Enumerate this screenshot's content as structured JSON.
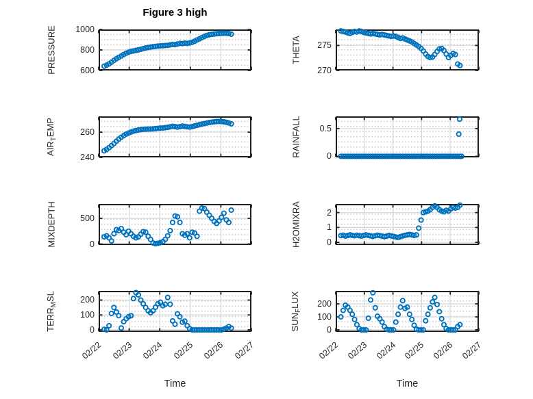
{
  "title": "Figure 3 high",
  "style": {
    "marker": "o",
    "marker_color": "#0072BD",
    "axis_color": "#1f1f1f",
    "grid_color": "#d8d8d8",
    "minor_grid_color": "#c6c6c6",
    "background": "#ffffff"
  },
  "xaxis": {
    "label": "Time",
    "xlim": [
      0,
      5
    ],
    "ticks": [
      "02/22",
      "02/23",
      "02/24",
      "02/25",
      "02/26",
      "02/27"
    ],
    "minor_grid": true
  },
  "chart_data": [
    {
      "id": "pressure",
      "type": "scatter",
      "row": 0,
      "col": 0,
      "ylabel_parts": [
        {
          "t": "PRESSURE"
        }
      ],
      "ylabel_text": "PRESSURE",
      "ylim": [
        600,
        1000
      ],
      "yticks": [
        600,
        800,
        1000
      ],
      "ytick_labels": [
        "600",
        "800",
        "1000"
      ],
      "x": [
        0.18,
        0.26,
        0.34,
        0.42,
        0.5,
        0.58,
        0.66,
        0.74,
        0.82,
        0.9,
        0.98,
        1.06,
        1.14,
        1.22,
        1.3,
        1.38,
        1.46,
        1.54,
        1.62,
        1.7,
        1.78,
        1.86,
        1.94,
        2.02,
        2.1,
        2.18,
        2.26,
        2.34,
        2.42,
        2.5,
        2.58,
        2.66,
        2.74,
        2.82,
        2.9,
        2.98,
        3.06,
        3.14,
        3.22,
        3.3,
        3.38,
        3.46,
        3.54,
        3.62,
        3.7,
        3.78,
        3.86,
        3.94,
        4.02,
        4.1,
        4.18,
        4.26,
        4.34
      ],
      "y": [
        642,
        652,
        665,
        681,
        698,
        714,
        728,
        742,
        756,
        768,
        778,
        786,
        791,
        796,
        801,
        807,
        813,
        819,
        824,
        828,
        832,
        835,
        838,
        840,
        841,
        843,
        845,
        849,
        854,
        852,
        858,
        864,
        862,
        866,
        864,
        868,
        875,
        885,
        897,
        909,
        921,
        932,
        941,
        948,
        952,
        955,
        958,
        960,
        962,
        963,
        962,
        960,
        954
      ]
    },
    {
      "id": "theta",
      "type": "scatter",
      "row": 0,
      "col": 1,
      "ylabel_parts": [
        {
          "t": "THETA"
        }
      ],
      "ylabel_text": "THETA",
      "ylim": [
        270,
        278.2
      ],
      "yticks": [
        270,
        275
      ],
      "ytick_labels": [
        "270",
        "275"
      ],
      "x": [
        0.18,
        0.26,
        0.34,
        0.42,
        0.5,
        0.58,
        0.66,
        0.74,
        0.82,
        0.9,
        0.98,
        1.06,
        1.14,
        1.22,
        1.3,
        1.38,
        1.46,
        1.54,
        1.62,
        1.7,
        1.78,
        1.86,
        1.94,
        2.02,
        2.1,
        2.18,
        2.26,
        2.34,
        2.42,
        2.5,
        2.58,
        2.66,
        2.74,
        2.82,
        2.9,
        2.98,
        3.06,
        3.14,
        3.22,
        3.3,
        3.38,
        3.46,
        3.54,
        3.62,
        3.7,
        3.78,
        3.86,
        3.94,
        4.02,
        4.1,
        4.18,
        4.26,
        4.34
      ],
      "y": [
        277.9,
        277.8,
        277.7,
        277.5,
        277.4,
        277.6,
        277.8,
        277.7,
        277.9,
        277.8,
        277.6,
        277.5,
        277.4,
        277.3,
        277.4,
        277.3,
        277.2,
        277.1,
        277.2,
        277.1,
        277.0,
        276.9,
        276.8,
        276.9,
        276.8,
        276.6,
        276.4,
        276.5,
        276.3,
        276.1,
        275.9,
        275.7,
        275.4,
        275.1,
        274.8,
        274.4,
        273.9,
        273.3,
        272.8,
        272.6,
        272.7,
        273.2,
        273.8,
        274.3,
        274.4,
        274.0,
        273.3,
        272.6,
        273.0,
        273.4,
        273.2,
        271.3,
        271.0
      ]
    },
    {
      "id": "airtemp",
      "type": "scatter",
      "row": 1,
      "col": 0,
      "ylabel_parts": [
        {
          "t": "AIR"
        },
        {
          "t": "T",
          "sub": true
        },
        {
          "t": "EMP"
        }
      ],
      "ylabel_text": "AIR_TEMP",
      "ylim": [
        240,
        272.5
      ],
      "yticks": [
        240,
        260
      ],
      "ytick_labels": [
        "240",
        "260"
      ],
      "x": [
        0.18,
        0.26,
        0.34,
        0.42,
        0.5,
        0.58,
        0.66,
        0.74,
        0.82,
        0.9,
        0.98,
        1.06,
        1.14,
        1.22,
        1.3,
        1.38,
        1.46,
        1.54,
        1.62,
        1.7,
        1.78,
        1.86,
        1.94,
        2.02,
        2.1,
        2.18,
        2.26,
        2.34,
        2.42,
        2.5,
        2.58,
        2.66,
        2.74,
        2.82,
        2.9,
        2.98,
        3.06,
        3.14,
        3.22,
        3.3,
        3.38,
        3.46,
        3.54,
        3.62,
        3.7,
        3.78,
        3.86,
        3.94,
        4.02,
        4.1,
        4.18,
        4.26,
        4.34
      ],
      "y": [
        245.2,
        246.3,
        247.7,
        249.3,
        251.0,
        252.8,
        254.5,
        256.0,
        257.3,
        258.4,
        259.3,
        260.1,
        260.8,
        261.3,
        261.7,
        262.0,
        262.2,
        262.3,
        262.4,
        262.5,
        262.6,
        262.8,
        263.0,
        263.2,
        263.3,
        263.5,
        263.8,
        264.2,
        264.6,
        264.3,
        264.0,
        264.4,
        264.8,
        264.5,
        264.2,
        264.0,
        264.4,
        264.9,
        265.4,
        265.9,
        266.4,
        266.8,
        267.2,
        267.6,
        267.9,
        268.2,
        268.4,
        268.5,
        268.4,
        268.2,
        267.8,
        267.3,
        266.6
      ]
    },
    {
      "id": "rainfall",
      "type": "scatter",
      "row": 1,
      "col": 1,
      "ylabel_parts": [
        {
          "t": "RAINFALL"
        }
      ],
      "ylabel_text": "RAINFALL",
      "ylim": [
        -0.02,
        0.72
      ],
      "yticks": [
        0,
        0.5
      ],
      "ytick_labels": [
        "0",
        "0.5"
      ],
      "x": [
        0.18,
        0.26,
        0.34,
        0.42,
        0.5,
        0.58,
        0.66,
        0.74,
        0.82,
        0.9,
        0.98,
        1.06,
        1.14,
        1.22,
        1.3,
        1.38,
        1.46,
        1.54,
        1.62,
        1.7,
        1.78,
        1.86,
        1.94,
        2.02,
        2.1,
        2.18,
        2.26,
        2.34,
        2.42,
        2.5,
        2.58,
        2.66,
        2.74,
        2.82,
        2.9,
        2.98,
        3.06,
        3.14,
        3.22,
        3.3,
        3.38,
        3.46,
        3.54,
        3.62,
        3.7,
        3.78,
        3.86,
        3.94,
        4.02,
        4.1,
        4.18,
        4.26,
        4.34,
        4.3,
        4.33,
        4.4
      ],
      "y": [
        0,
        0,
        0,
        0,
        0,
        0,
        0,
        0,
        0,
        0,
        0,
        0,
        0,
        0,
        0,
        0,
        0,
        0,
        0,
        0,
        0,
        0,
        0,
        0,
        0,
        0,
        0,
        0,
        0,
        0,
        0,
        0,
        0,
        0,
        0,
        0,
        0,
        0,
        0,
        0,
        0,
        0,
        0,
        0,
        0,
        0,
        0,
        0,
        0,
        0,
        0,
        0,
        0,
        0.4,
        0.67,
        0
      ]
    },
    {
      "id": "mixdepth",
      "type": "scatter",
      "row": 2,
      "col": 0,
      "ylabel_parts": [
        {
          "t": "MIXDEPTH"
        }
      ],
      "ylabel_text": "MIXDEPTH",
      "ylim": [
        -20,
        780
      ],
      "yticks": [
        0,
        500
      ],
      "ytick_labels": [
        "0",
        "500"
      ],
      "x": [
        0.18,
        0.26,
        0.34,
        0.42,
        0.5,
        0.58,
        0.66,
        0.74,
        0.82,
        0.9,
        0.98,
        1.06,
        1.14,
        1.22,
        1.3,
        1.38,
        1.46,
        1.54,
        1.62,
        1.7,
        1.78,
        1.86,
        1.94,
        2.02,
        2.1,
        2.18,
        2.26,
        2.34,
        2.42,
        2.5,
        2.58,
        2.66,
        2.74,
        2.82,
        2.9,
        2.98,
        3.06,
        3.14,
        3.22,
        3.3,
        3.38,
        3.46,
        3.54,
        3.62,
        3.7,
        3.78,
        3.86,
        3.94,
        4.02,
        4.1,
        4.18,
        4.26,
        4.34
      ],
      "y": [
        140,
        160,
        120,
        60,
        200,
        280,
        260,
        300,
        230,
        180,
        250,
        200,
        150,
        120,
        140,
        190,
        240,
        230,
        150,
        90,
        20,
        5,
        15,
        25,
        45,
        90,
        160,
        260,
        420,
        545,
        530,
        420,
        200,
        170,
        200,
        120,
        230,
        215,
        150,
        640,
        700,
        690,
        620,
        560,
        500,
        440,
        400,
        450,
        520,
        600,
        470,
        420,
        660
      ]
    },
    {
      "id": "h2omixra",
      "type": "scatter",
      "row": 2,
      "col": 1,
      "ylabel_parts": [
        {
          "t": "H2OMIXRA"
        }
      ],
      "ylabel_text": "H2OMIXRA",
      "ylim": [
        -0.18,
        2.58
      ],
      "yticks": [
        0,
        1,
        2
      ],
      "ytick_labels": [
        "0",
        "1",
        "2"
      ],
      "x": [
        0.18,
        0.26,
        0.34,
        0.42,
        0.5,
        0.58,
        0.66,
        0.74,
        0.82,
        0.9,
        0.98,
        1.06,
        1.14,
        1.22,
        1.3,
        1.38,
        1.46,
        1.54,
        1.62,
        1.7,
        1.78,
        1.86,
        1.94,
        2.02,
        2.1,
        2.18,
        2.26,
        2.34,
        2.42,
        2.5,
        2.58,
        2.66,
        2.74,
        2.82,
        2.9,
        2.98,
        3.06,
        3.14,
        3.22,
        3.3,
        3.38,
        3.46,
        3.54,
        3.62,
        3.7,
        3.78,
        3.86,
        3.94,
        4.02,
        4.1,
        4.18,
        4.26,
        4.34
      ],
      "y": [
        0.45,
        0.48,
        0.42,
        0.46,
        0.5,
        0.47,
        0.44,
        0.48,
        0.45,
        0.42,
        0.46,
        0.5,
        0.47,
        0.43,
        0.4,
        0.44,
        0.48,
        0.45,
        0.42,
        0.38,
        0.42,
        0.46,
        0.43,
        0.4,
        0.36,
        0.33,
        0.38,
        0.43,
        0.47,
        0.5,
        0.53,
        0.5,
        0.46,
        0.5,
        0.95,
        1.5,
        2.0,
        2.05,
        2.1,
        2.2,
        2.35,
        2.45,
        2.35,
        2.2,
        2.1,
        2.05,
        2.15,
        2.1,
        2.25,
        2.35,
        2.3,
        2.35,
        2.5
      ]
    },
    {
      "id": "terrmsl",
      "type": "scatter",
      "row": 3,
      "col": 0,
      "ylabel_parts": [
        {
          "t": "TERR"
        },
        {
          "t": "M",
          "sub": true
        },
        {
          "t": "SL"
        }
      ],
      "ylabel_text": "TERR_MSL",
      "ylim": [
        -14,
        262
      ],
      "yticks": [
        0,
        100,
        200
      ],
      "ytick_labels": [
        "0",
        "100",
        "200"
      ],
      "x": [
        0.18,
        0.26,
        0.34,
        0.42,
        0.5,
        0.58,
        0.66,
        0.74,
        0.82,
        0.9,
        0.98,
        1.06,
        1.14,
        1.22,
        1.3,
        1.38,
        1.46,
        1.54,
        1.62,
        1.7,
        1.78,
        1.86,
        1.94,
        2.02,
        2.1,
        2.18,
        2.26,
        2.34,
        2.42,
        2.5,
        2.58,
        2.66,
        2.74,
        2.82,
        2.9,
        2.98,
        3.06,
        3.14,
        3.22,
        3.3,
        3.38,
        3.46,
        3.54,
        3.62,
        3.7,
        3.78,
        3.86,
        3.94,
        4.02,
        4.1,
        4.18,
        4.26,
        4.34
      ],
      "y": [
        3,
        0,
        28,
        110,
        150,
        120,
        95,
        12,
        55,
        75,
        88,
        95,
        210,
        250,
        235,
        200,
        175,
        150,
        128,
        115,
        128,
        152,
        175,
        185,
        162,
        172,
        218,
        172,
        60,
        38,
        108,
        88,
        52,
        58,
        28,
        8,
        0,
        0,
        0,
        0,
        0,
        0,
        0,
        0,
        0,
        0,
        0,
        0,
        0,
        5,
        12,
        22,
        12
      ]
    },
    {
      "id": "sunflux",
      "type": "scatter",
      "row": 3,
      "col": 1,
      "ylabel_parts": [
        {
          "t": "SUN"
        },
        {
          "t": "F",
          "sub": true
        },
        {
          "t": "LUX"
        }
      ],
      "ylabel_text": "SUN_FLUX",
      "ylim": [
        -16,
        300
      ],
      "yticks": [
        0,
        100,
        200
      ],
      "ytick_labels": [
        "0",
        "100",
        "200"
      ],
      "x": [
        0.18,
        0.26,
        0.34,
        0.42,
        0.5,
        0.58,
        0.66,
        0.74,
        0.82,
        0.9,
        0.98,
        1.06,
        1.14,
        1.22,
        1.3,
        1.38,
        1.46,
        1.54,
        1.62,
        1.7,
        1.78,
        1.86,
        1.94,
        2.02,
        2.1,
        2.18,
        2.26,
        2.34,
        2.42,
        2.5,
        2.58,
        2.66,
        2.74,
        2.82,
        2.9,
        2.98,
        3.06,
        3.14,
        3.22,
        3.3,
        3.38,
        3.46,
        3.54,
        3.62,
        3.7,
        3.78,
        3.86,
        3.94,
        4.02,
        4.1,
        4.18,
        4.26,
        4.34
      ],
      "y": [
        100,
        150,
        190,
        175,
        150,
        120,
        80,
        40,
        10,
        0,
        0,
        0,
        90,
        230,
        285,
        170,
        105,
        85,
        60,
        25,
        5,
        0,
        0,
        0,
        60,
        120,
        175,
        225,
        165,
        175,
        120,
        80,
        35,
        5,
        0,
        0,
        0,
        70,
        120,
        170,
        215,
        250,
        195,
        140,
        85,
        40,
        10,
        0,
        0,
        0,
        0,
        25,
        40
      ]
    }
  ]
}
